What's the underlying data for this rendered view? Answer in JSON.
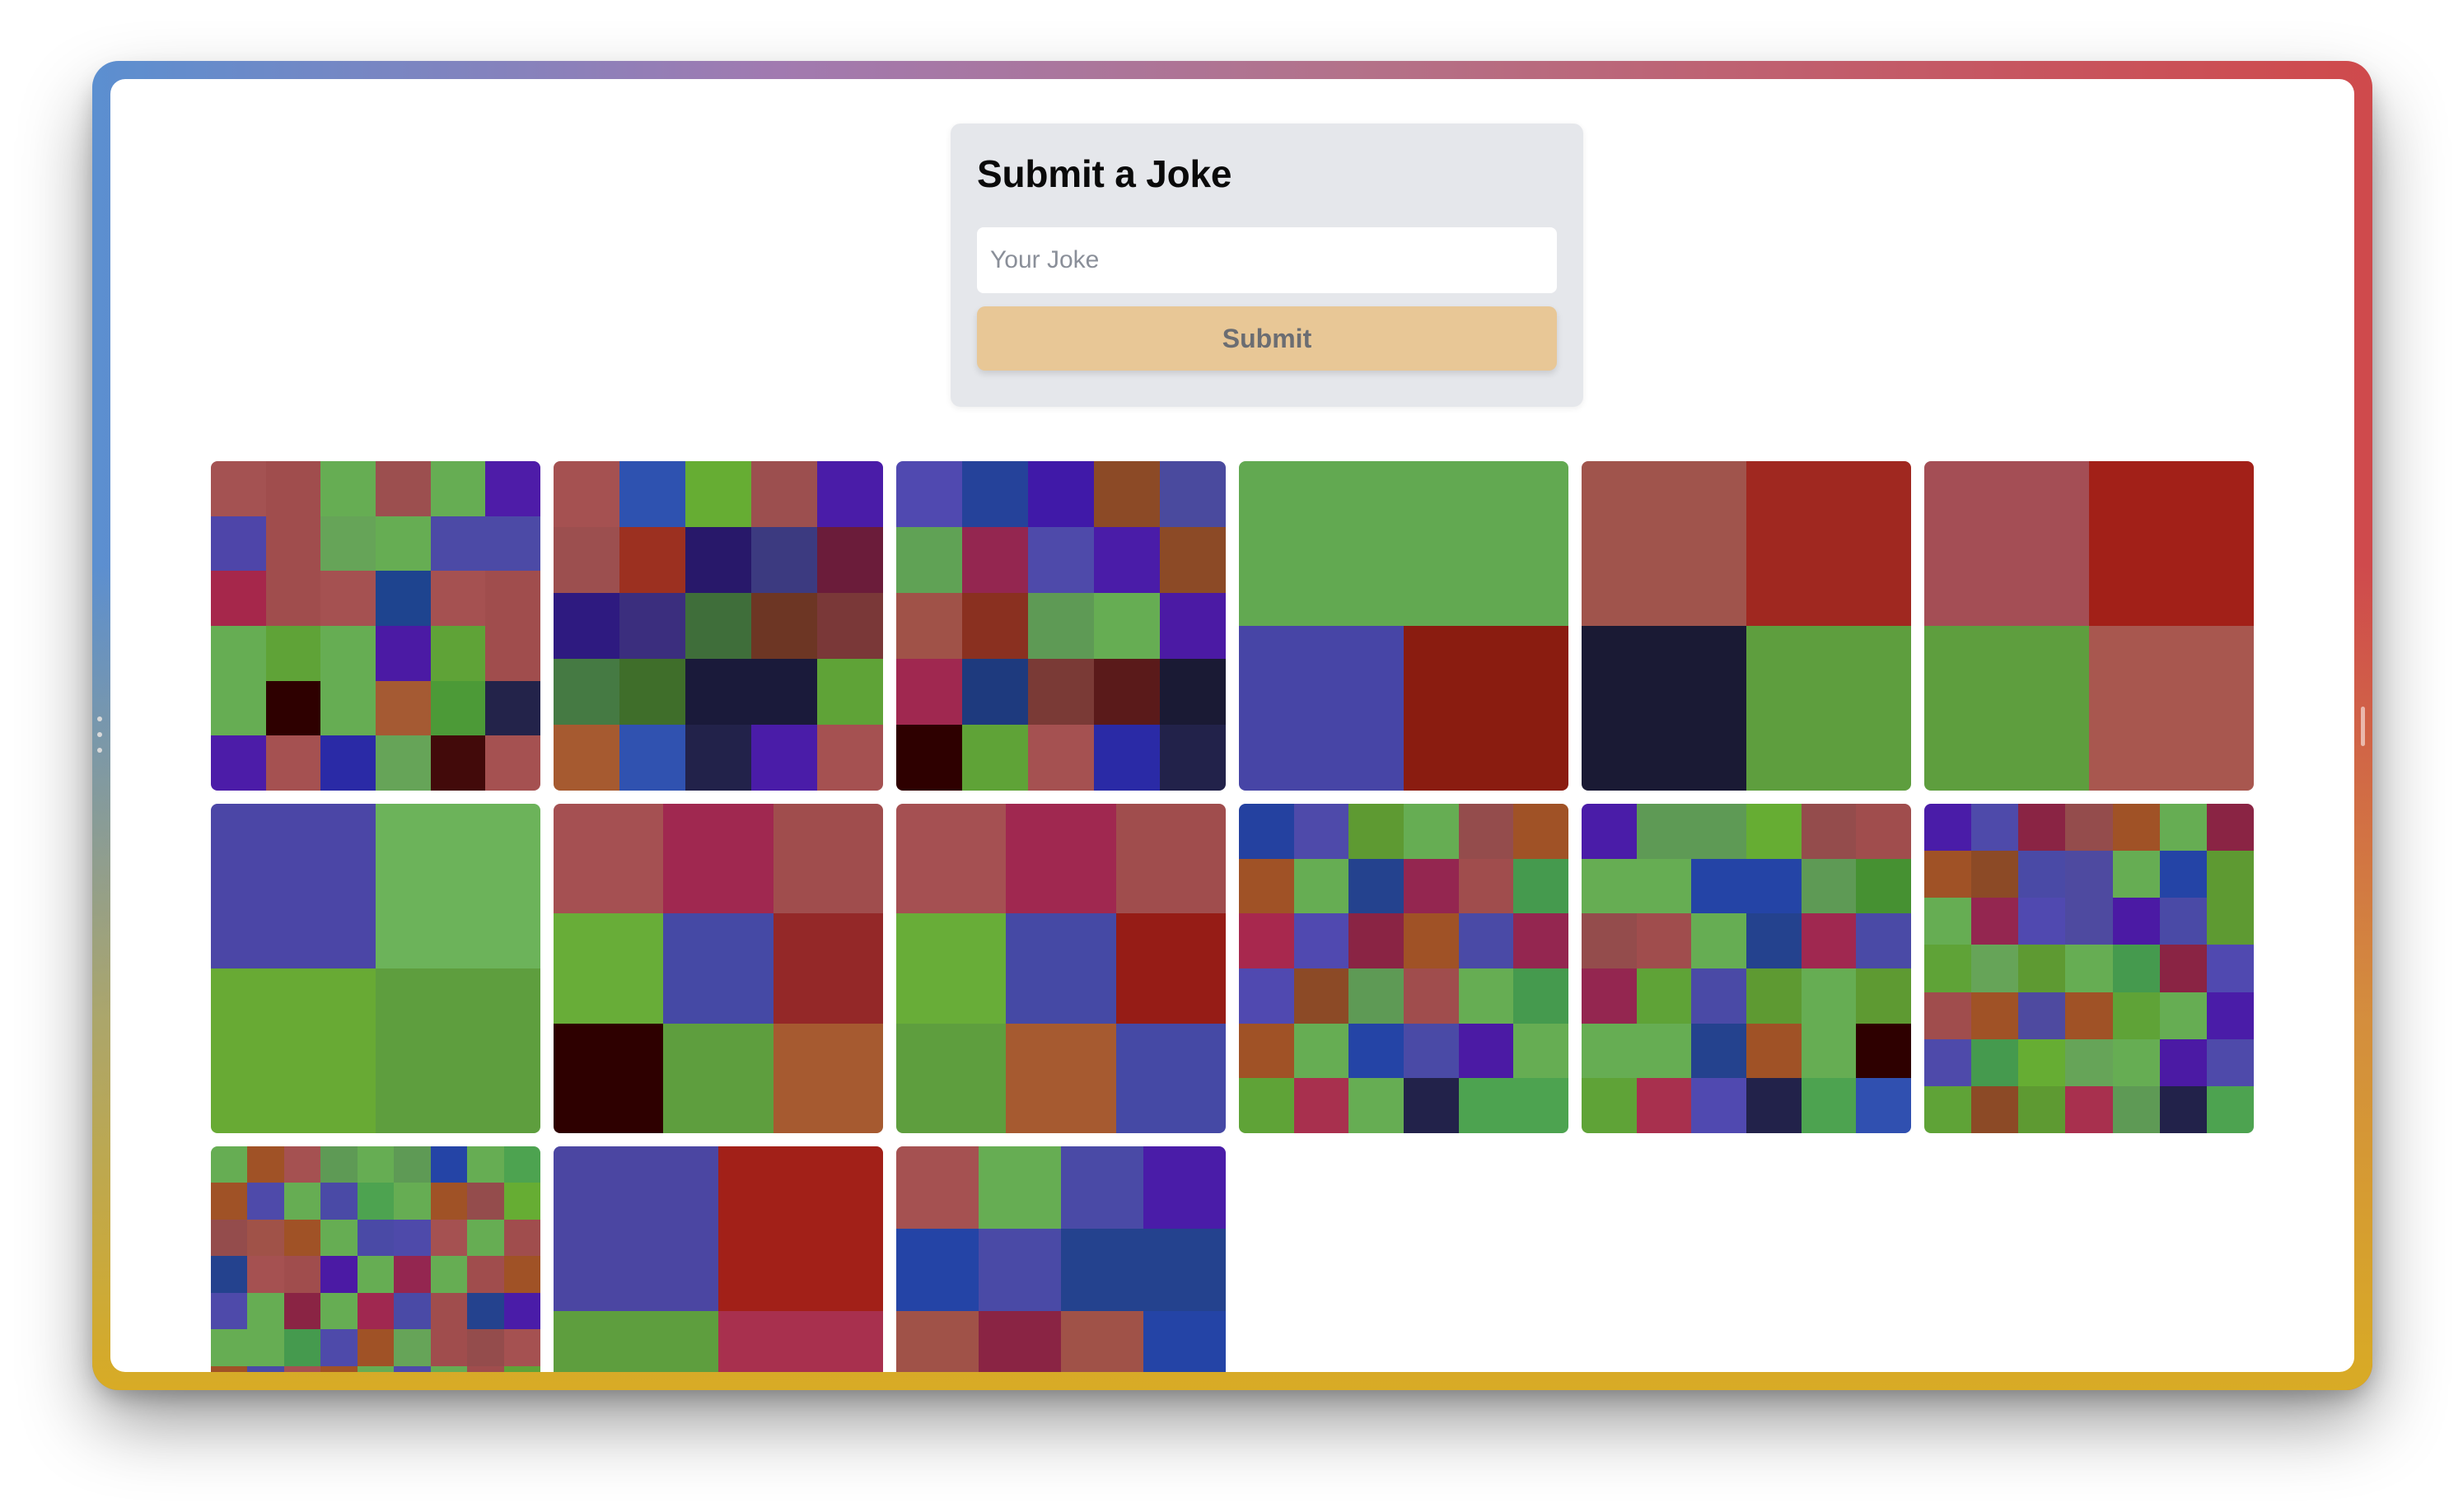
{
  "form": {
    "title": "Submit a Joke",
    "input_placeholder": "Your Joke",
    "input_value": "",
    "submit_label": "Submit"
  },
  "colors": {
    "panel_background": "#e5e7eb",
    "submit_button": "#e8c796"
  },
  "tiles": [
    {
      "cols": 6,
      "rows": 6,
      "cells": [
        "#a45252",
        "#a04d4d",
        "#66ad53",
        "#9c4f4f",
        "#66ad53",
        "#4e1ca8",
        "#4e45a9",
        "#a04d4d",
        "#66a458",
        "#66ad53",
        "#4c4aa6",
        "#4c4aa6",
        "#a6274b",
        "#a04d4d",
        "#a55151",
        "#1e448f",
        "#a55151",
        "#a04d4d",
        "#66ad53",
        "#5fa337",
        "#66ad53",
        "#4b1aa4",
        "#5fa337",
        "#a04d4d",
        "#66ad53",
        "#2e0000",
        "#66ad53",
        "#a55a33",
        "#4c9a37",
        "#23234a",
        "#4c1ca8",
        "#a55151",
        "#2a2aa6",
        "#66a458",
        "#420a0a",
        "#a55151"
      ]
    },
    {
      "cols": 5,
      "rows": 5,
      "cells": [
        "#a55151",
        "#2e52b0",
        "#66ad33",
        "#9c4f4f",
        "#4a1ca8",
        "#9c4f4f",
        "#9c3020",
        "#28186a",
        "#3c3a80",
        "#6b1c3a",
        "#2e1a80",
        "#3b2e7e",
        "#3f6e3a",
        "#6d3624",
        "#7a3838",
        "#457a43",
        "#3f6e2a",
        "#1a1a3a",
        "#1a1a3a",
        "#5fa337",
        "#a65a30",
        "#3052b0",
        "#22224a",
        "#4a1ca8",
        "#a55151"
      ]
    },
    {
      "cols": 5,
      "rows": 5,
      "cells": [
        "#5049b0",
        "#25429a",
        "#4019a8",
        "#8c4a26",
        "#4a4a9e",
        "#60a255",
        "#942650",
        "#4e4aaa",
        "#4a1ca8",
        "#8c4a26",
        "#a05248",
        "#8a3020",
        "#5e9a55",
        "#66ad53",
        "#4b1aa4",
        "#a02850",
        "#1e3a7e",
        "#7a3a36",
        "#5a1a1a",
        "#1a1a34",
        "#2e0000",
        "#5fa337",
        "#a55151",
        "#2a2aa6",
        "#22224a"
      ]
    },
    {
      "cols": 2,
      "rows": 2,
      "cells": [
        "#62a951",
        "#62a951",
        "#4745a6",
        "#8a1c10"
      ]
    },
    {
      "cols": 2,
      "rows": 2,
      "cells": [
        "#a0544c",
        "#a02820",
        "#1a1a34",
        "#5e9e3e"
      ]
    },
    {
      "cols": 2,
      "rows": 2,
      "cells": [
        "#a44e55",
        "#a22018",
        "#5e9e3e",
        "#a8574f"
      ]
    },
    {
      "cols": 2,
      "rows": 2,
      "cells": [
        "#4b46a6",
        "#6cb35a",
        "#68aa34",
        "#5e9e3e"
      ]
    },
    {
      "cols": 3,
      "rows": 3,
      "cells": [
        "#a55052",
        "#a02850",
        "#a04d4d",
        "#68ad38",
        "#4549a5",
        "#942828",
        "#2e0000",
        "#5e9e3e",
        "#a65a30"
      ]
    },
    {
      "cols": 3,
      "rows": 3,
      "cells": [
        "#a55052",
        "#a02850",
        "#a04d4d",
        "#68ad38",
        "#4549a5",
        "#961c16",
        "#5e9e3e",
        "#a65a30",
        "#4549a5"
      ]
    },
    {
      "cols": 6,
      "rows": 6,
      "cells": [
        "#2441a0",
        "#4e4aaa",
        "#5e9a32",
        "#66ad53",
        "#944c4c",
        "#a05226",
        "#a05226",
        "#66ad53",
        "#24428e",
        "#942650",
        "#a04d4d",
        "#459a4e",
        "#a8284e",
        "#5049b0",
        "#8a2444",
        "#a05226",
        "#4a4aa6",
        "#942650",
        "#5049b0",
        "#8c4a26",
        "#5e9a55",
        "#a04d4d",
        "#66ad53",
        "#459a4e",
        "#a05226",
        "#66ad53",
        "#2444a6",
        "#4a4aa6",
        "#4b1aa4",
        "#66ad53",
        "#5fa337",
        "#a8304e",
        "#66ad53",
        "#22224a",
        "#4da350",
        "#4da350"
      ]
    },
    {
      "cols": 6,
      "rows": 6,
      "cells": [
        "#4a1ca8",
        "#5e9a55",
        "#5e9a55",
        "#66ad33",
        "#944c4c",
        "#a04d4d",
        "#66ad53",
        "#66ad53",
        "#2444a6",
        "#2444a6",
        "#5e9a55",
        "#469132",
        "#944c4c",
        "#a04d4d",
        "#66ad53",
        "#24428e",
        "#a02850",
        "#4a4aa6",
        "#942650",
        "#5fa337",
        "#4a4aa6",
        "#5e9a32",
        "#66ad53",
        "#5e9a32",
        "#66ad53",
        "#66ad53",
        "#24428e",
        "#a05226",
        "#66ad53",
        "#2e0000",
        "#5fa337",
        "#a8304e",
        "#5049b0",
        "#22224a",
        "#4da350",
        "#3050b0"
      ]
    },
    {
      "cols": 7,
      "rows": 7,
      "cells": [
        "#4a1ca8",
        "#4e4aaa",
        "#8a2444",
        "#944c4c",
        "#a05226",
        "#66ad53",
        "#8a2444",
        "#a05226",
        "#8c4a26",
        "#4a4aa6",
        "#4e4aa0",
        "#66ad53",
        "#2444a6",
        "#5e9a32",
        "#66ad53",
        "#942650",
        "#5049b0",
        "#4e4aa0",
        "#4b1aa4",
        "#4a4aa6",
        "#5e9a32",
        "#5fa337",
        "#66a458",
        "#5e9a32",
        "#66ad53",
        "#459a4e",
        "#8a2444",
        "#5049b0",
        "#a04d4d",
        "#a05226",
        "#4e4aa0",
        "#a05226",
        "#5fa337",
        "#66ad53",
        "#4a1ca8",
        "#4e4aaa",
        "#459a4e",
        "#66ad33",
        "#66a458",
        "#66ad53",
        "#4b1aa4",
        "#4e4aaa",
        "#5fa337",
        "#8c4a26",
        "#5e9a32",
        "#a8304e",
        "#5e9a55",
        "#22224a",
        "#4da350"
      ]
    },
    {
      "cols": 9,
      "rows": 9,
      "cells": [
        "#66ad53",
        "#a05226",
        "#a55151",
        "#5e9a55",
        "#66ad53",
        "#5e9a55",
        "#2444a6",
        "#66ad53",
        "#4da350",
        "#a05226",
        "#4e4aaa",
        "#66ad53",
        "#4a4aa6",
        "#4da350",
        "#66ad53",
        "#a05226",
        "#944c4c",
        "#66ad33",
        "#944c4c",
        "#a05248",
        "#a05226",
        "#66ad53",
        "#4a4aa6",
        "#4e4aaa",
        "#a55151",
        "#66ad53",
        "#a04d4d",
        "#24428e",
        "#a55151",
        "#a04d4d",
        "#4b1aa4",
        "#66ad53",
        "#942650",
        "#66ad53",
        "#a04d4d",
        "#a05226",
        "#4e4aaa",
        "#66ad53",
        "#8a2444",
        "#66ad53",
        "#a02850",
        "#4a4aa6",
        "#a04d4d",
        "#24428e",
        "#4a1ca8",
        "#66ad53",
        "#66ad53",
        "#459a4e",
        "#4e4aaa",
        "#a05226",
        "#66a458",
        "#a04d4d",
        "#944c4c",
        "#a55151",
        "#a05226",
        "#4a4aa6",
        "#a55151",
        "#a05226",
        "#66ad53",
        "#4e4aaa",
        "#66ad53",
        "#a04d4d",
        "#5fa337",
        "#66ad53",
        "#a05248",
        "#4e4aaa",
        "#66ad53",
        "#a8304e",
        "#66ad53",
        "#5fa337",
        "#944c4c",
        "#a05226",
        "#4a1ca8",
        "#66ad53",
        "#a55151",
        "#4e4aaa",
        "#66ad53",
        "#a05226",
        "#4a4aa6",
        "#66ad53",
        "#a04d4d"
      ]
    },
    {
      "cols": 2,
      "rows": 2,
      "cells": [
        "#4b46a2",
        "#a22018",
        "#5e9e3e",
        "#a8304e"
      ]
    },
    {
      "cols": 4,
      "rows": 4,
      "cells": [
        "#a55151",
        "#66ad53",
        "#4a4aa6",
        "#4a1ca8",
        "#2444a6",
        "#4a4aa6",
        "#24428e",
        "#24428e",
        "#a05248",
        "#8a2444",
        "#a05248",
        "#2444a6",
        "#5e9a55",
        "#a8304e",
        "#66ad53",
        "#4a4aa6"
      ]
    }
  ]
}
